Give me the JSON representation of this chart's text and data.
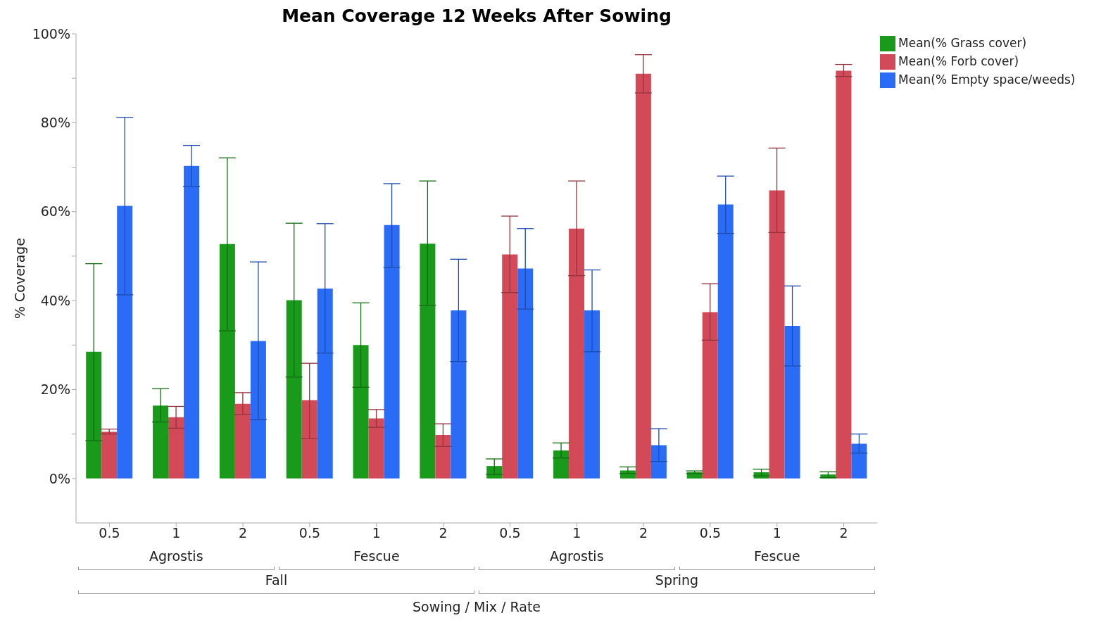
{
  "chart_data": {
    "type": "bar",
    "title": "Mean Coverage 12 Weeks After Sowing",
    "xlabel": "Sowing / Mix / Rate",
    "ylabel": "% Coverage",
    "categories": [
      "0.5",
      "1",
      "2",
      "0.5",
      "1",
      "2",
      "0.5",
      "1",
      "2",
      "0.5",
      "1",
      "2"
    ],
    "annotations": [
      "Agrostis",
      "Fescue",
      "Agrostis",
      "Fescue",
      "Fall",
      "Spring"
    ],
    "series": [
      {
        "name": "Mean(% Grass cover)",
        "color": "#1a9a1a",
        "values": [
          28.5,
          16.4,
          52.7,
          40.1,
          30.0,
          52.8,
          2.8,
          6.3,
          1.8,
          1.4,
          1.4,
          0.9
        ],
        "errors": [
          [
            8.5,
            48.3
          ],
          [
            12.7,
            20.2
          ],
          [
            33.2,
            72.1
          ],
          [
            22.8,
            57.4
          ],
          [
            20.5,
            39.5
          ],
          [
            38.9,
            66.9
          ],
          [
            0.9,
            4.4
          ],
          [
            4.6,
            8.0
          ],
          [
            1.1,
            2.6
          ],
          [
            1.1,
            1.7
          ],
          [
            0.6,
            2.1
          ],
          [
            0.2,
            1.5
          ]
        ]
      },
      {
        "name": "Mean(% Forb cover)",
        "color": "#d24a58",
        "values": [
          10.5,
          13.8,
          16.8,
          17.6,
          13.5,
          9.8,
          50.4,
          56.2,
          91.0,
          37.4,
          64.8,
          91.7
        ],
        "errors": [
          [
            10.0,
            11.1
          ],
          [
            11.3,
            16.2
          ],
          [
            14.4,
            19.3
          ],
          [
            9.0,
            25.9
          ],
          [
            11.5,
            15.5
          ],
          [
            7.2,
            12.3
          ],
          [
            41.8,
            59.0
          ],
          [
            45.6,
            66.9
          ],
          [
            86.7,
            95.3
          ],
          [
            31.1,
            43.8
          ],
          [
            55.3,
            74.3
          ],
          [
            90.4,
            93.1
          ]
        ]
      },
      {
        "name": "Mean(% Empty space/weeds)",
        "color": "#2a6cf6",
        "values": [
          61.3,
          70.3,
          30.9,
          42.7,
          57.0,
          37.8,
          47.2,
          37.8,
          7.5,
          61.6,
          34.3,
          7.8
        ],
        "errors": [
          [
            41.3,
            81.2
          ],
          [
            65.7,
            74.9
          ],
          [
            13.2,
            48.7
          ],
          [
            28.2,
            57.3
          ],
          [
            47.5,
            66.3
          ],
          [
            26.3,
            49.3
          ],
          [
            38.1,
            56.2
          ],
          [
            28.5,
            46.9
          ],
          [
            3.8,
            11.2
          ],
          [
            55.1,
            68.0
          ],
          [
            25.3,
            43.3
          ],
          [
            5.7,
            10.0
          ]
        ]
      }
    ],
    "ylim": [
      -10,
      100
    ],
    "yticks": [
      {
        "value": 0,
        "label": "0%"
      },
      {
        "value": 10,
        "label": null
      },
      {
        "value": 20,
        "label": "20%"
      },
      {
        "value": 30,
        "label": null
      },
      {
        "value": 40,
        "label": "40%"
      },
      {
        "value": 50,
        "label": null
      },
      {
        "value": 60,
        "label": "60%"
      },
      {
        "value": 70,
        "label": null
      },
      {
        "value": 80,
        "label": "80%"
      },
      {
        "value": 90,
        "label": null
      },
      {
        "value": 100,
        "label": "100%"
      }
    ],
    "grid": false,
    "legend": "top right"
  }
}
